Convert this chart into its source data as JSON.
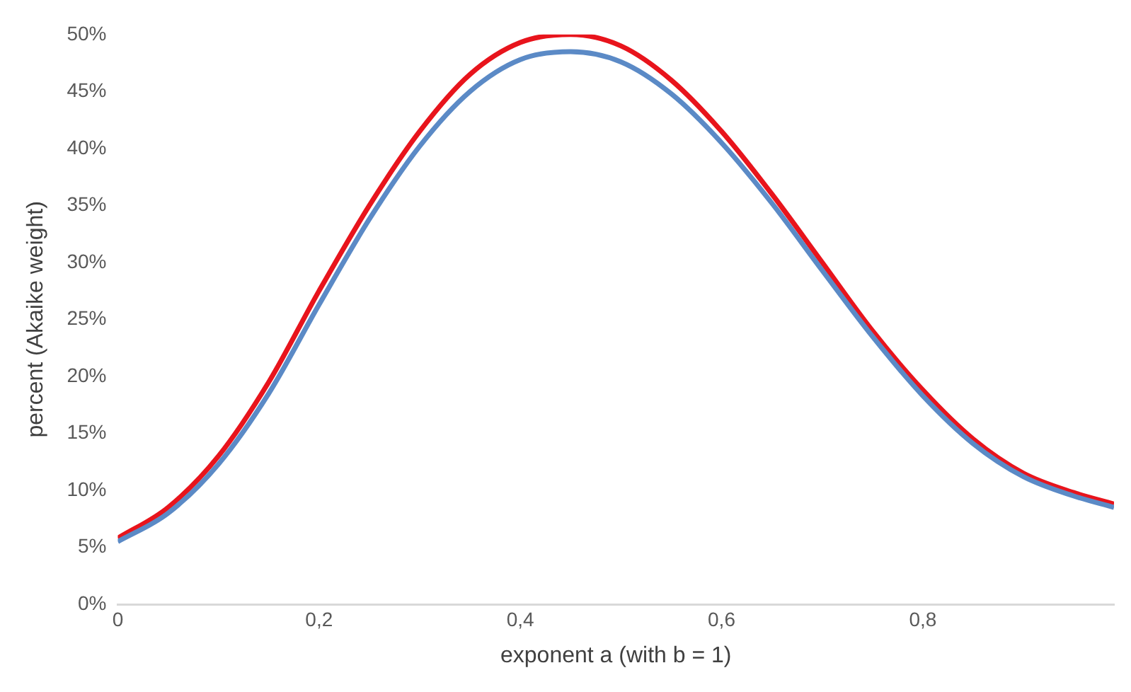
{
  "chart_data": {
    "type": "line",
    "xlabel": "exponent a (with b = 1)",
    "ylabel": "percent (Akaike weight)",
    "x": [
      0,
      0.05,
      0.1,
      0.15,
      0.2,
      0.25,
      0.3,
      0.35,
      0.4,
      0.45,
      0.5,
      0.55,
      0.6,
      0.65,
      0.7,
      0.75,
      0.8,
      0.85,
      0.9,
      0.95,
      0.99
    ],
    "series": [
      {
        "color": "#5b8ac6",
        "values": [
          5.5,
          8,
          12.3,
          18.5,
          26.3,
          33.8,
          40.2,
          45,
          47.8,
          48.5,
          47.6,
          44.8,
          40.5,
          35.2,
          29.3,
          23.5,
          18.3,
          14.1,
          11.2,
          9.5,
          8.5
        ]
      },
      {
        "color": "#e8141c",
        "values": [
          5.8,
          8.5,
          13,
          19.5,
          27.5,
          35,
          41.5,
          46.5,
          49.3,
          50,
          49,
          46,
          41.5,
          36,
          30,
          24,
          18.8,
          14.5,
          11.5,
          9.8,
          8.8
        ]
      }
    ],
    "xlim": [
      0,
      0.99
    ],
    "xticks": [
      0,
      {
        "value": 0.2,
        "label": "0,2"
      },
      {
        "value": 0.4,
        "label": "0,4"
      },
      {
        "value": 0.6,
        "label": "0,6"
      },
      {
        "value": 0.8,
        "label": "0,8"
      }
    ],
    "ylim": [
      0,
      50
    ],
    "yticks": [
      {
        "value": 0,
        "label": "0%"
      },
      {
        "value": 5,
        "label": "5%"
      },
      {
        "value": 10,
        "label": "10%"
      },
      {
        "value": 15,
        "label": "15%"
      },
      {
        "value": 20,
        "label": "20%"
      },
      {
        "value": 25,
        "label": "25%"
      },
      {
        "value": 30,
        "label": "30%"
      },
      {
        "value": 35,
        "label": "35%"
      },
      {
        "value": 40,
        "label": "40%"
      },
      {
        "value": 45,
        "label": "45%"
      },
      {
        "value": 50,
        "label": "50%"
      }
    ],
    "grid": false,
    "legend": false,
    "marker": "none",
    "line_style": "solid"
  }
}
